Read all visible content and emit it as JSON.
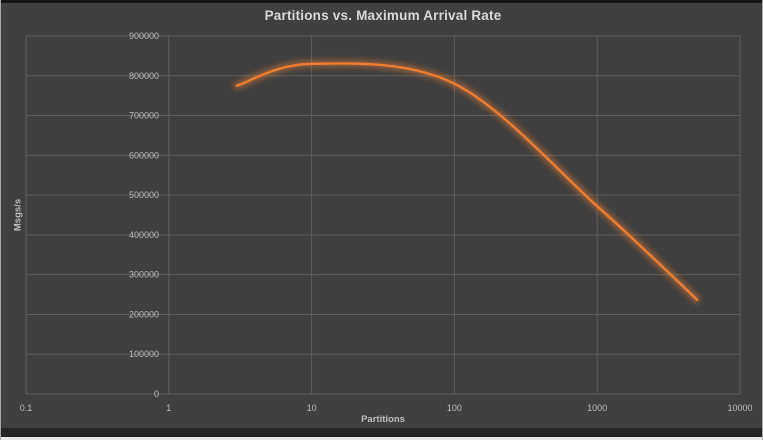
{
  "chart": {
    "title": "Partitions vs. Maximum Arrival Rate",
    "xlabel": "Partitions",
    "ylabel": "Msgs/s"
  },
  "chart_data": {
    "type": "line",
    "title": "Partitions vs. Maximum Arrival Rate",
    "xlabel": "Partitions",
    "ylabel": "Msgs/s",
    "x_scale": "log10",
    "xlim": [
      0.1,
      10000
    ],
    "ylim": [
      0,
      900000
    ],
    "x_ticks": [
      "0.1",
      "1",
      "10",
      "100",
      "1000",
      "10000"
    ],
    "y_ticks": [
      "0",
      "100000",
      "200000",
      "300000",
      "400000",
      "500000",
      "600000",
      "700000",
      "800000",
      "900000"
    ],
    "grid": true,
    "legend_position": "none",
    "smooth": true,
    "x": [
      3,
      10,
      100,
      1000,
      5000
    ],
    "values": [
      775000,
      830000,
      780000,
      472000,
      237000
    ]
  },
  "colors": {
    "background": "#404040",
    "gridline": "#5E5E5E",
    "tick_text": "#BDBDBD",
    "title_text": "#D9D9D9",
    "line": "#ED7D31",
    "line_glow": "rgba(237,125,49,0.5)"
  }
}
